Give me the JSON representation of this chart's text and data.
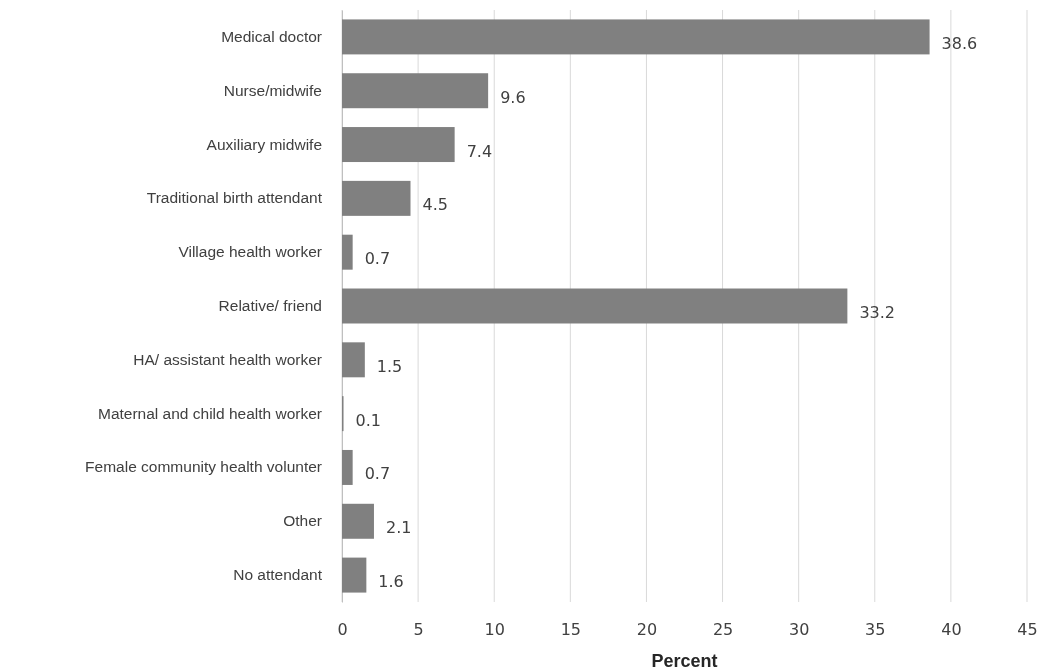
{
  "chart_data": {
    "type": "bar",
    "orientation": "horizontal",
    "xlabel": "Percent",
    "categories": [
      "Medical doctor",
      "Nurse/midwife",
      "Auxiliary midwife",
      "Traditional birth attendant",
      "Village health worker",
      "Relative/ friend",
      "HA/ assistant health worker",
      "Maternal and child health worker",
      "Female community health volunter",
      "Other",
      "No attendant"
    ],
    "values": [
      38.6,
      9.6,
      7.4,
      4.5,
      0.7,
      33.2,
      1.5,
      0.1,
      0.7,
      2.1,
      1.6
    ],
    "color": "#808080",
    "xlim": [
      0,
      45
    ],
    "xticks": [
      0,
      5,
      10,
      15,
      20,
      25,
      30,
      35,
      40,
      45
    ],
    "grid": "x",
    "data_labels": true
  }
}
